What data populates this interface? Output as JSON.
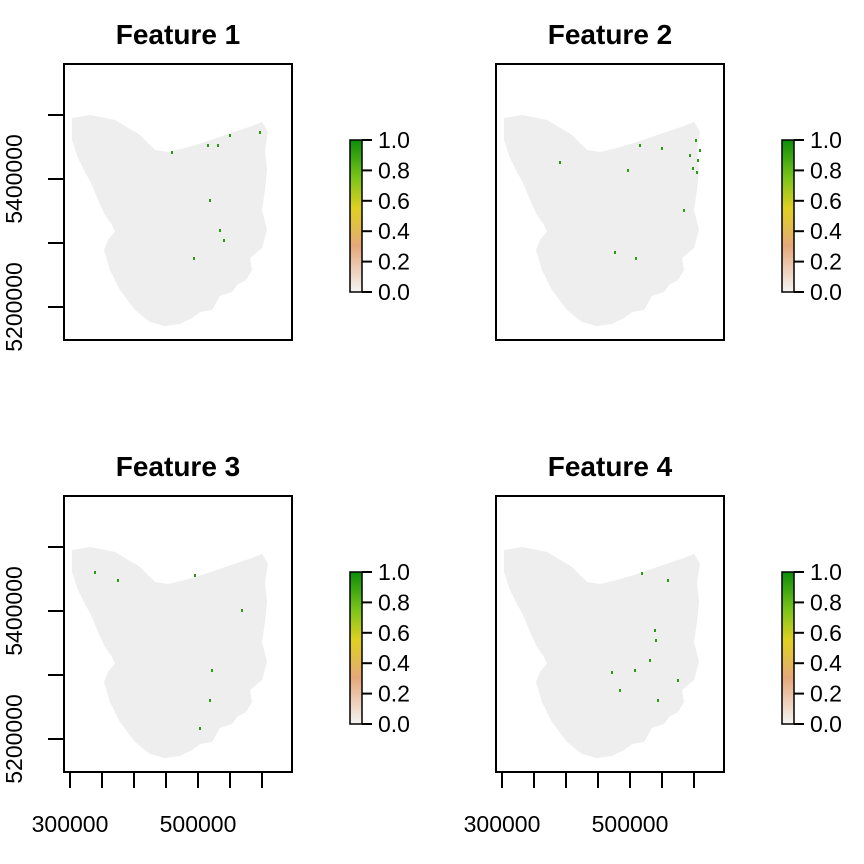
{
  "map_panels": [
    {
      "title": "Feature 1",
      "y_ticks": [
        "5200000",
        "5400000"
      ],
      "x_ticks": [],
      "legend_labels": [
        "1.0",
        "0.8",
        "0.6",
        "0.4",
        "0.2",
        "0.0"
      ],
      "scatter_points": [
        [
          230,
          135
        ],
        [
          208,
          145
        ],
        [
          218,
          145
        ],
        [
          172,
          152
        ],
        [
          260,
          132
        ],
        [
          210,
          200
        ],
        [
          220,
          230
        ],
        [
          224,
          240
        ],
        [
          194,
          258
        ]
      ]
    },
    {
      "title": "Feature 2",
      "y_ticks": [],
      "x_ticks": [],
      "legend_labels": [
        "1.0",
        "0.8",
        "0.6",
        "0.4",
        "0.2",
        "0.0"
      ],
      "scatter_points": [
        [
          696,
          140
        ],
        [
          700,
          150
        ],
        [
          690,
          155
        ],
        [
          698,
          160
        ],
        [
          693,
          168
        ],
        [
          697,
          172
        ],
        [
          662,
          148
        ],
        [
          640,
          145
        ],
        [
          560,
          162
        ],
        [
          628,
          170
        ],
        [
          615,
          252
        ],
        [
          636,
          258
        ],
        [
          684,
          210
        ]
      ]
    },
    {
      "title": "Feature 3",
      "y_ticks": [
        "5200000",
        "5400000"
      ],
      "x_ticks": [
        "300000",
        "500000"
      ],
      "legend_labels": [
        "1.0",
        "0.8",
        "0.6",
        "0.4",
        "0.2",
        "0.0"
      ],
      "scatter_points": [
        [
          95,
          572
        ],
        [
          118,
          580
        ],
        [
          195,
          575
        ],
        [
          242,
          610
        ],
        [
          212,
          670
        ],
        [
          210,
          700
        ],
        [
          200,
          728
        ]
      ]
    },
    {
      "title": "Feature 4",
      "y_ticks": [],
      "x_ticks": [
        "300000",
        "500000"
      ],
      "legend_labels": [
        "1.0",
        "0.8",
        "0.6",
        "0.4",
        "0.2",
        "0.0"
      ],
      "scatter_points": [
        [
          642,
          573
        ],
        [
          668,
          580
        ],
        [
          655,
          630
        ],
        [
          656,
          640
        ],
        [
          635,
          670
        ],
        [
          650,
          660
        ],
        [
          612,
          672
        ],
        [
          620,
          690
        ],
        [
          678,
          680
        ],
        [
          658,
          700
        ]
      ]
    }
  ],
  "colors": {
    "land": "#eeeeee",
    "points": "#2a9a12",
    "legend_gradient": [
      "#f4f4f4",
      "#e6a87b",
      "#e0d020",
      "#7cc41a",
      "#0c8e08"
    ]
  }
}
